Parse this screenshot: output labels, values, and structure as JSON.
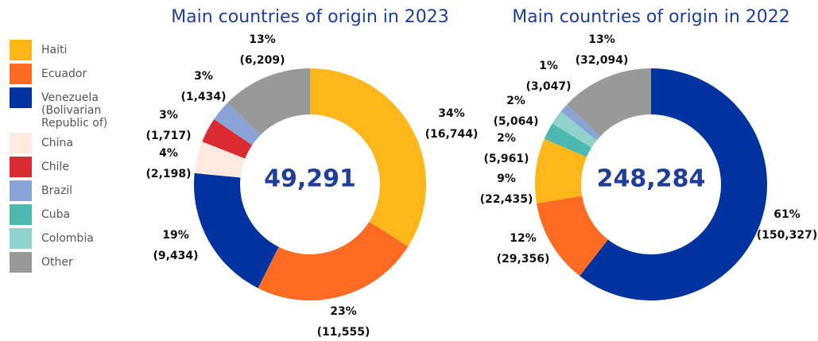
{
  "legend": {
    "labels": [
      "Haiti",
      "Ecuador",
      "Venezuela (Bolivarian Republic of)",
      "China",
      "Chile",
      "Brazil",
      "Cuba",
      "Colombia",
      "Other"
    ],
    "colors": [
      "#fdb71a",
      "#fd6b22",
      "#0033a0",
      "#fde9e0",
      "#d92b31",
      "#8aa3d6",
      "#4db8b0",
      "#8fd3cc",
      "#999999"
    ]
  },
  "chart_data": [
    {
      "type": "donut",
      "title": "Main countries of origin in 2023",
      "categories": [
        "Haiti",
        "Ecuador",
        "Venezuela (Bolivarian Republic of)",
        "China",
        "Chile",
        "Brazil",
        "Other"
      ],
      "values": [
        16744,
        11555,
        9434,
        2198,
        1717,
        1434,
        6209
      ],
      "value_labels": [
        "(16,744)",
        "(11,555)",
        "(9,434)",
        "(2,198)",
        "(1,717)",
        "(1,434)",
        "(6,209)"
      ],
      "percent_labels": [
        "34%",
        "23%",
        "19%",
        "4%",
        "3%",
        "3%",
        "13%"
      ],
      "colors": [
        "#fdb71a",
        "#fd6b22",
        "#0033a0",
        "#fde9e0",
        "#d92b31",
        "#8aa3d6",
        "#999999"
      ],
      "total": 49291,
      "total_label": "49,291"
    },
    {
      "type": "donut",
      "title": "Main countries of origin in 2022",
      "categories": [
        "Venezuela (Bolivarian Republic of)",
        "Ecuador",
        "Haiti",
        "Cuba",
        "Colombia",
        "Brazil",
        "Other"
      ],
      "values": [
        150327,
        29356,
        22435,
        5961,
        5064,
        3047,
        32094
      ],
      "value_labels": [
        "(150,327)",
        "(29,356)",
        "(22,435)",
        "(5,961)",
        "(5,064)",
        "(3,047)",
        "(32,094)"
      ],
      "percent_labels": [
        "61%",
        "12%",
        "9%",
        "2%",
        "2%",
        "1%",
        "13%"
      ],
      "colors": [
        "#0033a0",
        "#fd6b22",
        "#fdb71a",
        "#4db8b0",
        "#8fd3cc",
        "#8aa3d6",
        "#999999"
      ],
      "total": 248284,
      "total_label": "248,284"
    }
  ]
}
